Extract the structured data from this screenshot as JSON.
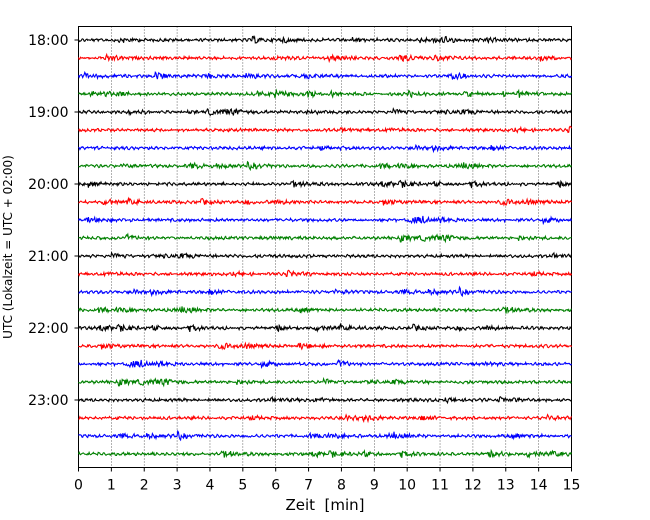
{
  "chart_data": {
    "type": "line",
    "title": "",
    "xlabel": "Zeit  [min]",
    "ylabel": "UTC (Lokalzeit = UTC + 02:00)",
    "xlim": [
      0,
      15
    ],
    "x_ticks": [
      "0",
      "1",
      "2",
      "3",
      "4",
      "5",
      "6",
      "7",
      "8",
      "9",
      "10",
      "11",
      "12",
      "13",
      "14",
      "15"
    ],
    "y_ticks": [
      "18:00",
      "19:00",
      "20:00",
      "21:00",
      "22:00",
      "23:00"
    ],
    "grid": {
      "vertical_dotted": true
    },
    "trace_start_times": [
      "18:00",
      "18:15",
      "18:30",
      "18:45",
      "19:00",
      "19:15",
      "19:30",
      "19:45",
      "20:00",
      "20:15",
      "20:30",
      "20:45",
      "21:00",
      "21:15",
      "21:30",
      "21:45",
      "22:00",
      "22:15",
      "22:30",
      "22:45",
      "23:00",
      "23:15",
      "23:30",
      "23:45"
    ],
    "colors": [
      "#000000",
      "#ff0000",
      "#0000ff",
      "#008000"
    ]
  }
}
